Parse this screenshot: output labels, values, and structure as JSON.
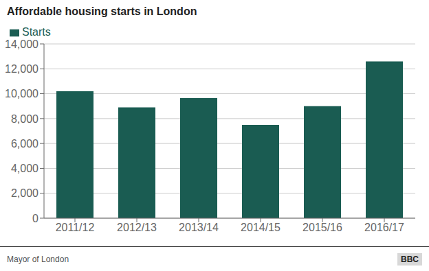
{
  "chart_data": {
    "type": "bar",
    "title": "Affordable housing starts in London",
    "categories": [
      "2011/12",
      "2012/13",
      "2013/14",
      "2014/15",
      "2015/16",
      "2016/17"
    ],
    "series": [
      {
        "name": "Starts",
        "color": "#1a5c52",
        "values": [
          10200,
          8900,
          9650,
          7500,
          9000,
          12600
        ]
      }
    ],
    "ylim": [
      0,
      14000
    ],
    "yticks": [
      0,
      {
        "value": 2000,
        "label": "2,000"
      },
      {
        "value": 4000,
        "label": "4,000"
      },
      {
        "value": 6000,
        "label": "6,000"
      },
      {
        "value": 8000,
        "label": "8,000"
      },
      {
        "value": 10000,
        "label": "10,000"
      },
      {
        "value": 12000,
        "label": "12,000"
      },
      {
        "value": 14000,
        "label": "14,000"
      }
    ],
    "grid": true,
    "legend": "upper left",
    "annotations": [
      "Mayor of London",
      "BBC"
    ]
  }
}
